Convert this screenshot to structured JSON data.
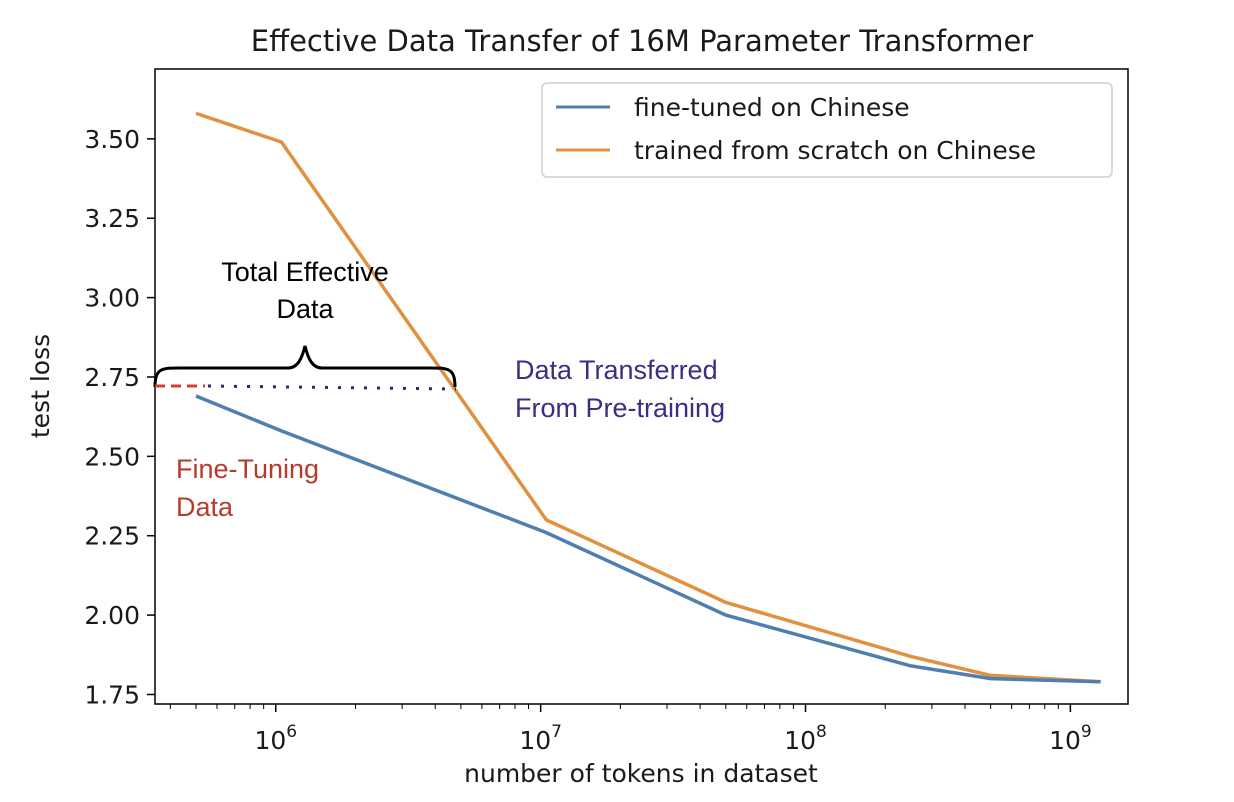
{
  "chart_data": {
    "type": "line",
    "title": "Effective Data Transfer of 16M Parameter Transformer",
    "xlabel": "number of tokens in dataset",
    "ylabel": "test loss",
    "x_scale": "log",
    "xlim": [
      350000,
      1650000000
    ],
    "ylim": [
      1.72,
      3.72
    ],
    "x_ticks": [
      {
        "value": 1000000,
        "base": "10",
        "exp": "6"
      },
      {
        "value": 10000000,
        "base": "10",
        "exp": "7"
      },
      {
        "value": 100000000,
        "base": "10",
        "exp": "8"
      },
      {
        "value": 1000000000,
        "base": "10",
        "exp": "9"
      }
    ],
    "y_ticks": [
      {
        "value": 1.75,
        "label": "1.75"
      },
      {
        "value": 2.0,
        "label": "2.00"
      },
      {
        "value": 2.25,
        "label": "2.25"
      },
      {
        "value": 2.5,
        "label": "2.50"
      },
      {
        "value": 2.75,
        "label": "2.75"
      },
      {
        "value": 3.0,
        "label": "3.00"
      },
      {
        "value": 3.25,
        "label": "3.25"
      },
      {
        "value": 3.5,
        "label": "3.50"
      }
    ],
    "grid": false,
    "legend_position": "top-right",
    "series": [
      {
        "name": "fine-tuned on Chinese",
        "color": "#4f7fae",
        "x": [
          500000,
          1050000,
          10500000,
          50000000,
          250000000,
          500000000,
          1300000000
        ],
        "y": [
          2.69,
          2.58,
          2.26,
          2.0,
          1.84,
          1.8,
          1.79
        ]
      },
      {
        "name": "trained from scratch on Chinese",
        "color": "#e0913f",
        "x": [
          500000,
          1050000,
          10500000,
          50000000,
          250000000,
          500000000,
          1300000000
        ],
        "y": [
          3.58,
          3.49,
          2.3,
          2.04,
          1.87,
          1.81,
          1.79
        ]
      }
    ],
    "annotations": {
      "total_effective": {
        "line1": "Total Effective",
        "line2": "Data",
        "x_start": 350000,
        "x_end": 5000000,
        "y": 2.68
      },
      "transferred": {
        "line1": "Data Transferred",
        "line2": "From Pre-training",
        "color": "#3a2f82"
      },
      "fine_tuning": {
        "line1": "Fine-Tuning",
        "line2": "Data",
        "color": "#b73a2d"
      }
    }
  }
}
